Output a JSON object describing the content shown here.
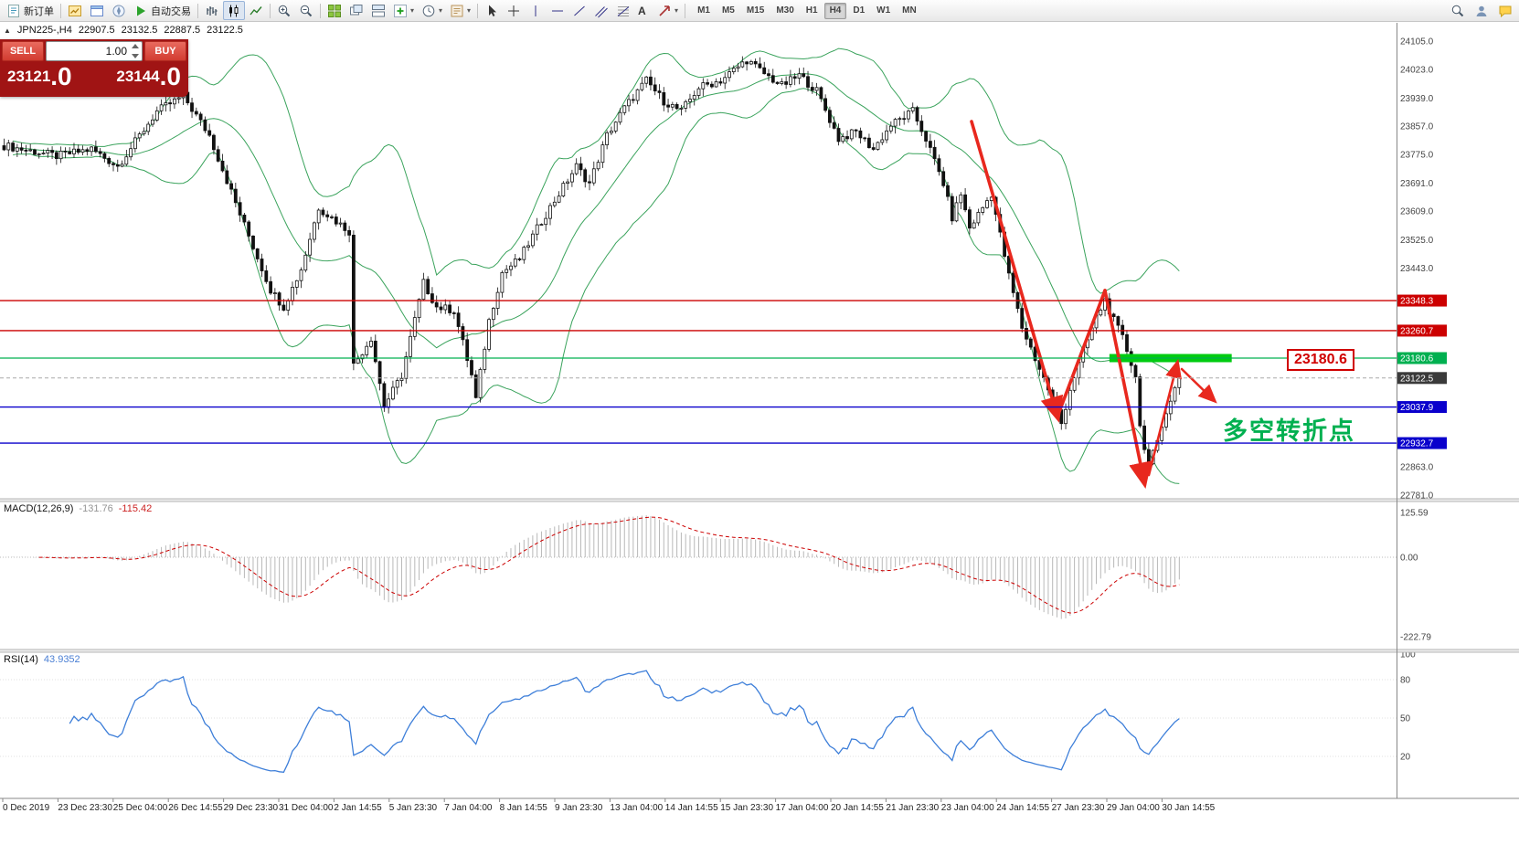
{
  "toolbar": {
    "new_order_label": "新订单",
    "auto_trading_label": "自动交易",
    "timeframes": [
      "M1",
      "M5",
      "M15",
      "M30",
      "H1",
      "H4",
      "D1",
      "W1",
      "MN"
    ],
    "active_timeframe": "H4",
    "caret": "▾",
    "text_tool_glyph": "A"
  },
  "chart_header": {
    "expander": "▲",
    "symbol": "JPN225-,H4",
    "open": "22907.5",
    "high": "23132.5",
    "low": "22887.5",
    "close": "23122.5"
  },
  "trade_panel": {
    "sell_label": "SELL",
    "buy_label": "BUY",
    "volume": "1.00",
    "sell_price_main": "23121",
    "sell_price_pips": ".0",
    "buy_price_main": "23144",
    "buy_price_pips": ".0"
  },
  "indicator_labels": {
    "macd_name": "MACD(12,26,9)",
    "macd_value1": "-131.76",
    "macd_value2": "-115.42",
    "rsi_name": "RSI(14)",
    "rsi_value": "43.9352"
  },
  "annotations": {
    "turning_point_text": "多空转折点",
    "level_label": "23180.6"
  },
  "chart_data": {
    "type": "candlestick",
    "symbol": "JPN225-",
    "timeframe": "H4",
    "current_ohlc": {
      "open": 22907.5,
      "high": 23132.5,
      "low": 22887.5,
      "close": 23122.5
    },
    "bars_total": 270,
    "close_anchors": [
      [
        0,
        23800
      ],
      [
        12,
        23770
      ],
      [
        20,
        23790
      ],
      [
        26,
        23740
      ],
      [
        35,
        23900
      ],
      [
        41,
        23945
      ],
      [
        47,
        23830
      ],
      [
        54,
        23600
      ],
      [
        61,
        23380
      ],
      [
        64,
        23330
      ],
      [
        68,
        23440
      ],
      [
        72,
        23620
      ],
      [
        76,
        23580
      ],
      [
        79,
        23550
      ],
      [
        80,
        23160
      ],
      [
        84,
        23240
      ],
      [
        87,
        23040
      ],
      [
        91,
        23130
      ],
      [
        96,
        23400
      ],
      [
        99,
        23330
      ],
      [
        103,
        23320
      ],
      [
        107,
        23130
      ],
      [
        108,
        23060
      ],
      [
        111,
        23290
      ],
      [
        114,
        23430
      ],
      [
        118,
        23470
      ],
      [
        123,
        23580
      ],
      [
        127,
        23660
      ],
      [
        131,
        23740
      ],
      [
        134,
        23690
      ],
      [
        138,
        23830
      ],
      [
        142,
        23910
      ],
      [
        147,
        23990
      ],
      [
        151,
        23930
      ],
      [
        155,
        23900
      ],
      [
        159,
        23970
      ],
      [
        164,
        23990
      ],
      [
        170,
        24050
      ],
      [
        174,
        24010
      ],
      [
        178,
        23975
      ],
      [
        182,
        24005
      ],
      [
        186,
        23960
      ],
      [
        191,
        23820
      ],
      [
        195,
        23840
      ],
      [
        199,
        23790
      ],
      [
        203,
        23860
      ],
      [
        208,
        23900
      ],
      [
        211,
        23820
      ],
      [
        215,
        23690
      ],
      [
        217,
        23590
      ],
      [
        219,
        23660
      ],
      [
        221,
        23560
      ],
      [
        224,
        23620
      ],
      [
        226,
        23660
      ],
      [
        228,
        23540
      ],
      [
        230,
        23420
      ],
      [
        233,
        23270
      ],
      [
        237,
        23150
      ],
      [
        240,
        23060
      ],
      [
        242,
        22990
      ],
      [
        244,
        23090
      ],
      [
        247,
        23200
      ],
      [
        250,
        23300
      ],
      [
        252,
        23350
      ],
      [
        254,
        23290
      ],
      [
        256,
        23240
      ],
      [
        259,
        23130
      ],
      [
        260,
        22980
      ],
      [
        262,
        22870
      ],
      [
        264,
        22930
      ],
      [
        266,
        23030
      ],
      [
        269,
        23122.5
      ]
    ],
    "bollinger": {
      "period": 20,
      "deviation": 2,
      "color": "#3aa35c"
    },
    "horizontal_lines": [
      {
        "price": 23348.3,
        "label": "23348.3",
        "color": "#cc0000"
      },
      {
        "price": 23260.7,
        "label": "23260.7",
        "color": "#cc0000"
      },
      {
        "price": 23180.6,
        "label": "23180.6",
        "color": "#00b050"
      },
      {
        "price": 23037.9,
        "label": "23037.9",
        "color": "#0a00cc"
      },
      {
        "price": 22932.7,
        "label": "22932.7",
        "color": "#0a00cc"
      }
    ],
    "current_price": {
      "price": 23122.5,
      "label": "23122.5",
      "badge_bg": "#3a3a3a"
    },
    "green_zone": {
      "price": 23180.6,
      "bar_from": 253,
      "bar_to": 281,
      "color": "#00cc11"
    },
    "price_ticks": [
      "24105.0",
      "24023.0",
      "23939.0",
      "23857.0",
      "23775.0",
      "23691.0",
      "23609.0",
      "23525.0",
      "23443.0",
      "22863.0",
      "22781.0"
    ],
    "macd": {
      "fast": 12,
      "slow": 26,
      "signal": 9,
      "scale_labels": [
        "125.59",
        "0.00",
        "-222.79"
      ],
      "histogram_color": "#b8b8b8",
      "signal_color": "#cc0000"
    },
    "rsi": {
      "period": 14,
      "value": 43.9352,
      "scale_labels": [
        "100",
        "80",
        "50",
        "20"
      ],
      "line_color": "#3e7fd9"
    },
    "time_labels": [
      "0 Dec 2019",
      "23 Dec 23:30",
      "25 Dec 04:00",
      "26 Dec 14:55",
      "29 Dec 23:30",
      "31 Dec 04:00",
      "2 Jan 14:55",
      "5 Jan 23:30",
      "7 Jan 04:00",
      "8 Jan 14:55",
      "9 Jan 23:30",
      "13 Jan 04:00",
      "14 Jan 14:55",
      "15 Jan 23:30",
      "17 Jan 04:00",
      "20 Jan 14:55",
      "21 Jan 23:30",
      "23 Jan 04:00",
      "24 Jan 14:55",
      "27 Jan 23:30",
      "29 Jan 04:00",
      "30 Jan 14:55"
    ],
    "arrows": {
      "color": "#e8281e",
      "polylines": [
        {
          "points": [
            [
              1063,
              133
            ],
            [
              1157,
              456
            ]
          ],
          "width": 3.6,
          "head": true
        },
        {
          "points": [
            [
              1157,
              456
            ],
            [
              1209,
              318
            ]
          ],
          "width": 3.6,
          "head": false
        },
        {
          "points": [
            [
              1209,
              318
            ],
            [
              1252,
              528
            ]
          ],
          "width": 3.6,
          "head": true
        },
        {
          "points": [
            [
              1257,
              520
            ],
            [
              1288,
              398
            ]
          ],
          "width": 2.6,
          "head": true
        },
        {
          "points": [
            [
              1293,
              404
            ],
            [
              1328,
              438
            ]
          ],
          "width": 2.6,
          "head": true
        }
      ]
    }
  }
}
